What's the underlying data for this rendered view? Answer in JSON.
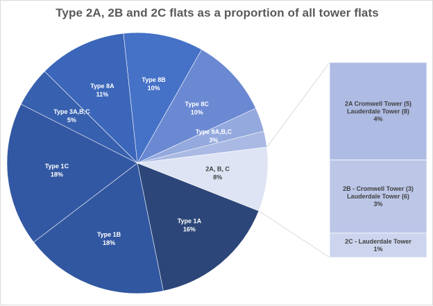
{
  "chart_data": {
    "type": "pie",
    "subtype": "pie-of-pie (bar of pie)",
    "title": "Type 2A, 2B and 2C flats as a proportion of all tower flats",
    "slices": [
      {
        "name": "Type 1A",
        "value": 16,
        "label": "16%",
        "color": "#2c4679"
      },
      {
        "name": "Type 1B",
        "value": 18,
        "label": "18%",
        "color": "#3157a0"
      },
      {
        "name": "Type 1C",
        "value": 18,
        "label": "18%",
        "color": "#3358a3"
      },
      {
        "name": "Type 3A,B,C",
        "value": 5,
        "label": "5%",
        "color": "#3760ae"
      },
      {
        "name": "Type 8A",
        "value": 11,
        "label": "11%",
        "color": "#3b66b9"
      },
      {
        "name": "Type 8B",
        "value": 10,
        "label": "10%",
        "color": "#4571c7"
      },
      {
        "name": "Type 8C",
        "value": 10,
        "label": "10%",
        "color": "#6b89d2"
      },
      {
        "name": "Type 9A,B,C",
        "value": 3,
        "label": "3%",
        "color": "#94a9dd"
      },
      {
        "name": "",
        "value": 2,
        "label": "",
        "color": "#a9b9e3",
        "note": "unlabeled slice"
      },
      {
        "name": "2A, B, C",
        "value": 8,
        "label": "8%",
        "color": "#dfe4f4"
      }
    ],
    "breakdown_of": "2A, B, C",
    "breakdown": [
      {
        "lines": [
          "2A Cromwell Tower (5)",
          "Lauderdale Tower (8)"
        ],
        "value": 4,
        "label": "4%",
        "color": "#aebbe3"
      },
      {
        "lines": [
          "2B - Cromwell Tower (3)",
          "Lauderdale Tower (6)"
        ],
        "value": 3,
        "label": "3%",
        "color": "#bcc7e8"
      },
      {
        "lines": [
          "2C - Lauderdale Tower"
        ],
        "value": 1,
        "label": "1%",
        "color": "#cdd5ee"
      }
    ],
    "legend": "none"
  }
}
